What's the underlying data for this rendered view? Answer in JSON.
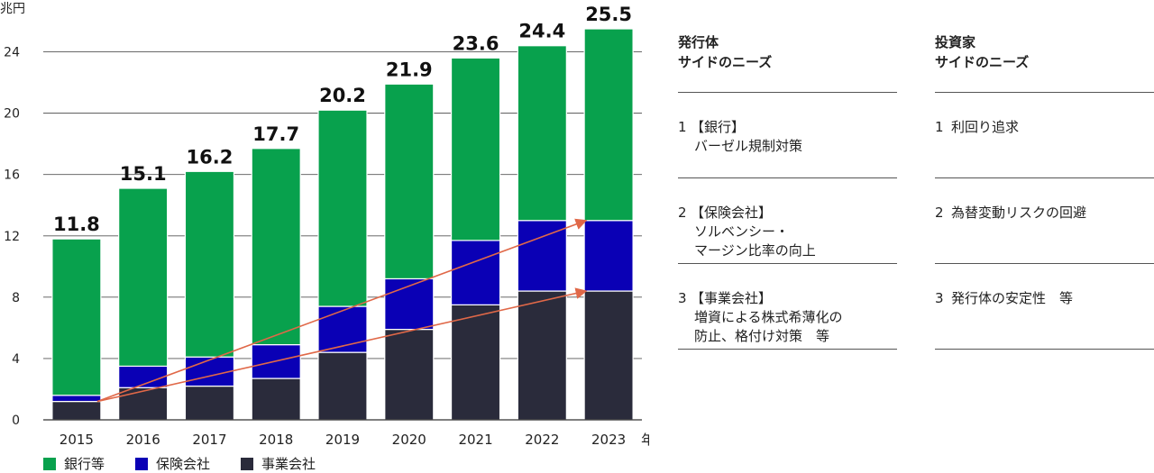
{
  "chart_data": {
    "type": "bar",
    "stacked": true,
    "unit_label": "兆円",
    "x_unit_label": "年",
    "categories": [
      "2015",
      "2016",
      "2017",
      "2018",
      "2019",
      "2020",
      "2021",
      "2022",
      "2023"
    ],
    "series": [
      {
        "name": "事業会社",
        "color": "#2a2b3b",
        "values": [
          1.2,
          2.1,
          2.2,
          2.7,
          4.4,
          5.9,
          7.5,
          8.4,
          8.4
        ]
      },
      {
        "name": "保険会社",
        "color": "#0a00b5",
        "values": [
          0.4,
          1.4,
          1.9,
          2.2,
          3.0,
          3.3,
          4.2,
          4.6,
          4.6
        ]
      },
      {
        "name": "銀行等",
        "color": "#08a14d",
        "values": [
          10.2,
          11.6,
          12.1,
          12.8,
          12.8,
          12.7,
          11.9,
          11.4,
          12.5
        ]
      }
    ],
    "totals": [
      "11.8",
      "15.1",
      "16.2",
      "17.7",
      "20.2",
      "21.9",
      "23.6",
      "24.4",
      "25.5"
    ],
    "yticks": [
      0,
      4,
      8,
      12,
      16,
      20,
      24
    ],
    "ylim": [
      0,
      26.5
    ],
    "grid": true,
    "legend_position": "bottom",
    "trend_arrows": [
      {
        "from_category": "2015",
        "from_value": 1.2,
        "to_category": "2023",
        "to_value": 8.4
      },
      {
        "from_category": "2015",
        "from_value": 1.2,
        "to_category": "2023",
        "to_value": 13.0
      }
    ],
    "arrow_color": "#e06848"
  },
  "legend": [
    {
      "label": "銀行等",
      "color": "#08a14d"
    },
    {
      "label": "保険会社",
      "color": "#0a00b5"
    },
    {
      "label": "事業会社",
      "color": "#2a2b3b"
    }
  ],
  "issuer": {
    "heading": [
      "発行体",
      "サイドのニーズ"
    ],
    "items": [
      {
        "num": "1",
        "lines": [
          "【銀行】",
          "バーゼル規制対策"
        ]
      },
      {
        "num": "2",
        "lines": [
          "【保険会社】",
          "ソルベンシー・",
          "マージン比率の向上"
        ]
      },
      {
        "num": "3",
        "lines": [
          "【事業会社】",
          "増資による株式希薄化の",
          "防止、格付け対策　等"
        ]
      }
    ]
  },
  "investor": {
    "heading": [
      "投資家",
      "サイドのニーズ"
    ],
    "items": [
      {
        "num": "1",
        "lines": [
          "利回り追求"
        ]
      },
      {
        "num": "2",
        "lines": [
          "為替変動リスクの回避"
        ]
      },
      {
        "num": "3",
        "lines": [
          "発行体の安定性　等"
        ]
      }
    ]
  }
}
